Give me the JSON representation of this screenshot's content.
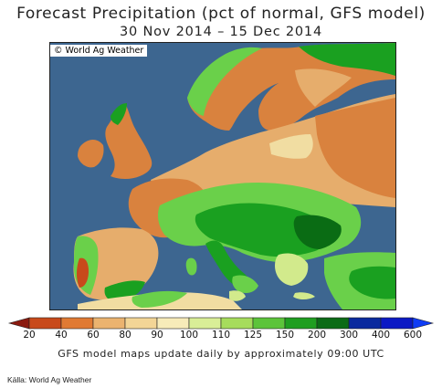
{
  "header": {
    "title": "Forecast Precipitation (pct of normal, GFS model)",
    "subtitle": "30 Nov 2014 – 15 Dec 2014"
  },
  "map": {
    "copyright": "© World Ag Weather",
    "colors": {
      "sea": "#3d6690",
      "dry_deep": "#a8471c",
      "dry_mid": "#d9823e",
      "dry_light": "#e6ad6c",
      "near_normal": "#f1dda2",
      "slightly_wet": "#d2ea8c",
      "wet": "#6ad04a",
      "very_wet": "#1aa020",
      "very_wet_dark": "#0a6c14",
      "lake": "#4a7bb0"
    }
  },
  "legend": {
    "ticks": [
      "20",
      "40",
      "60",
      "80",
      "90",
      "100",
      "110",
      "125",
      "150",
      "200",
      "300",
      "400",
      "600"
    ],
    "colors": [
      "#8b1a0f",
      "#c84a1b",
      "#e07a33",
      "#ebb36f",
      "#f3d596",
      "#f7ebb9",
      "#d9ee97",
      "#a6dc5c",
      "#5cc43a",
      "#1f9e20",
      "#0b6b16",
      "#0a2a9e",
      "#0b19c4",
      "#0f3cf5"
    ]
  },
  "footer": {
    "note": "GFS model maps update daily by approximately 09:00 UTC",
    "source": "Källa: World Ag Weather"
  }
}
